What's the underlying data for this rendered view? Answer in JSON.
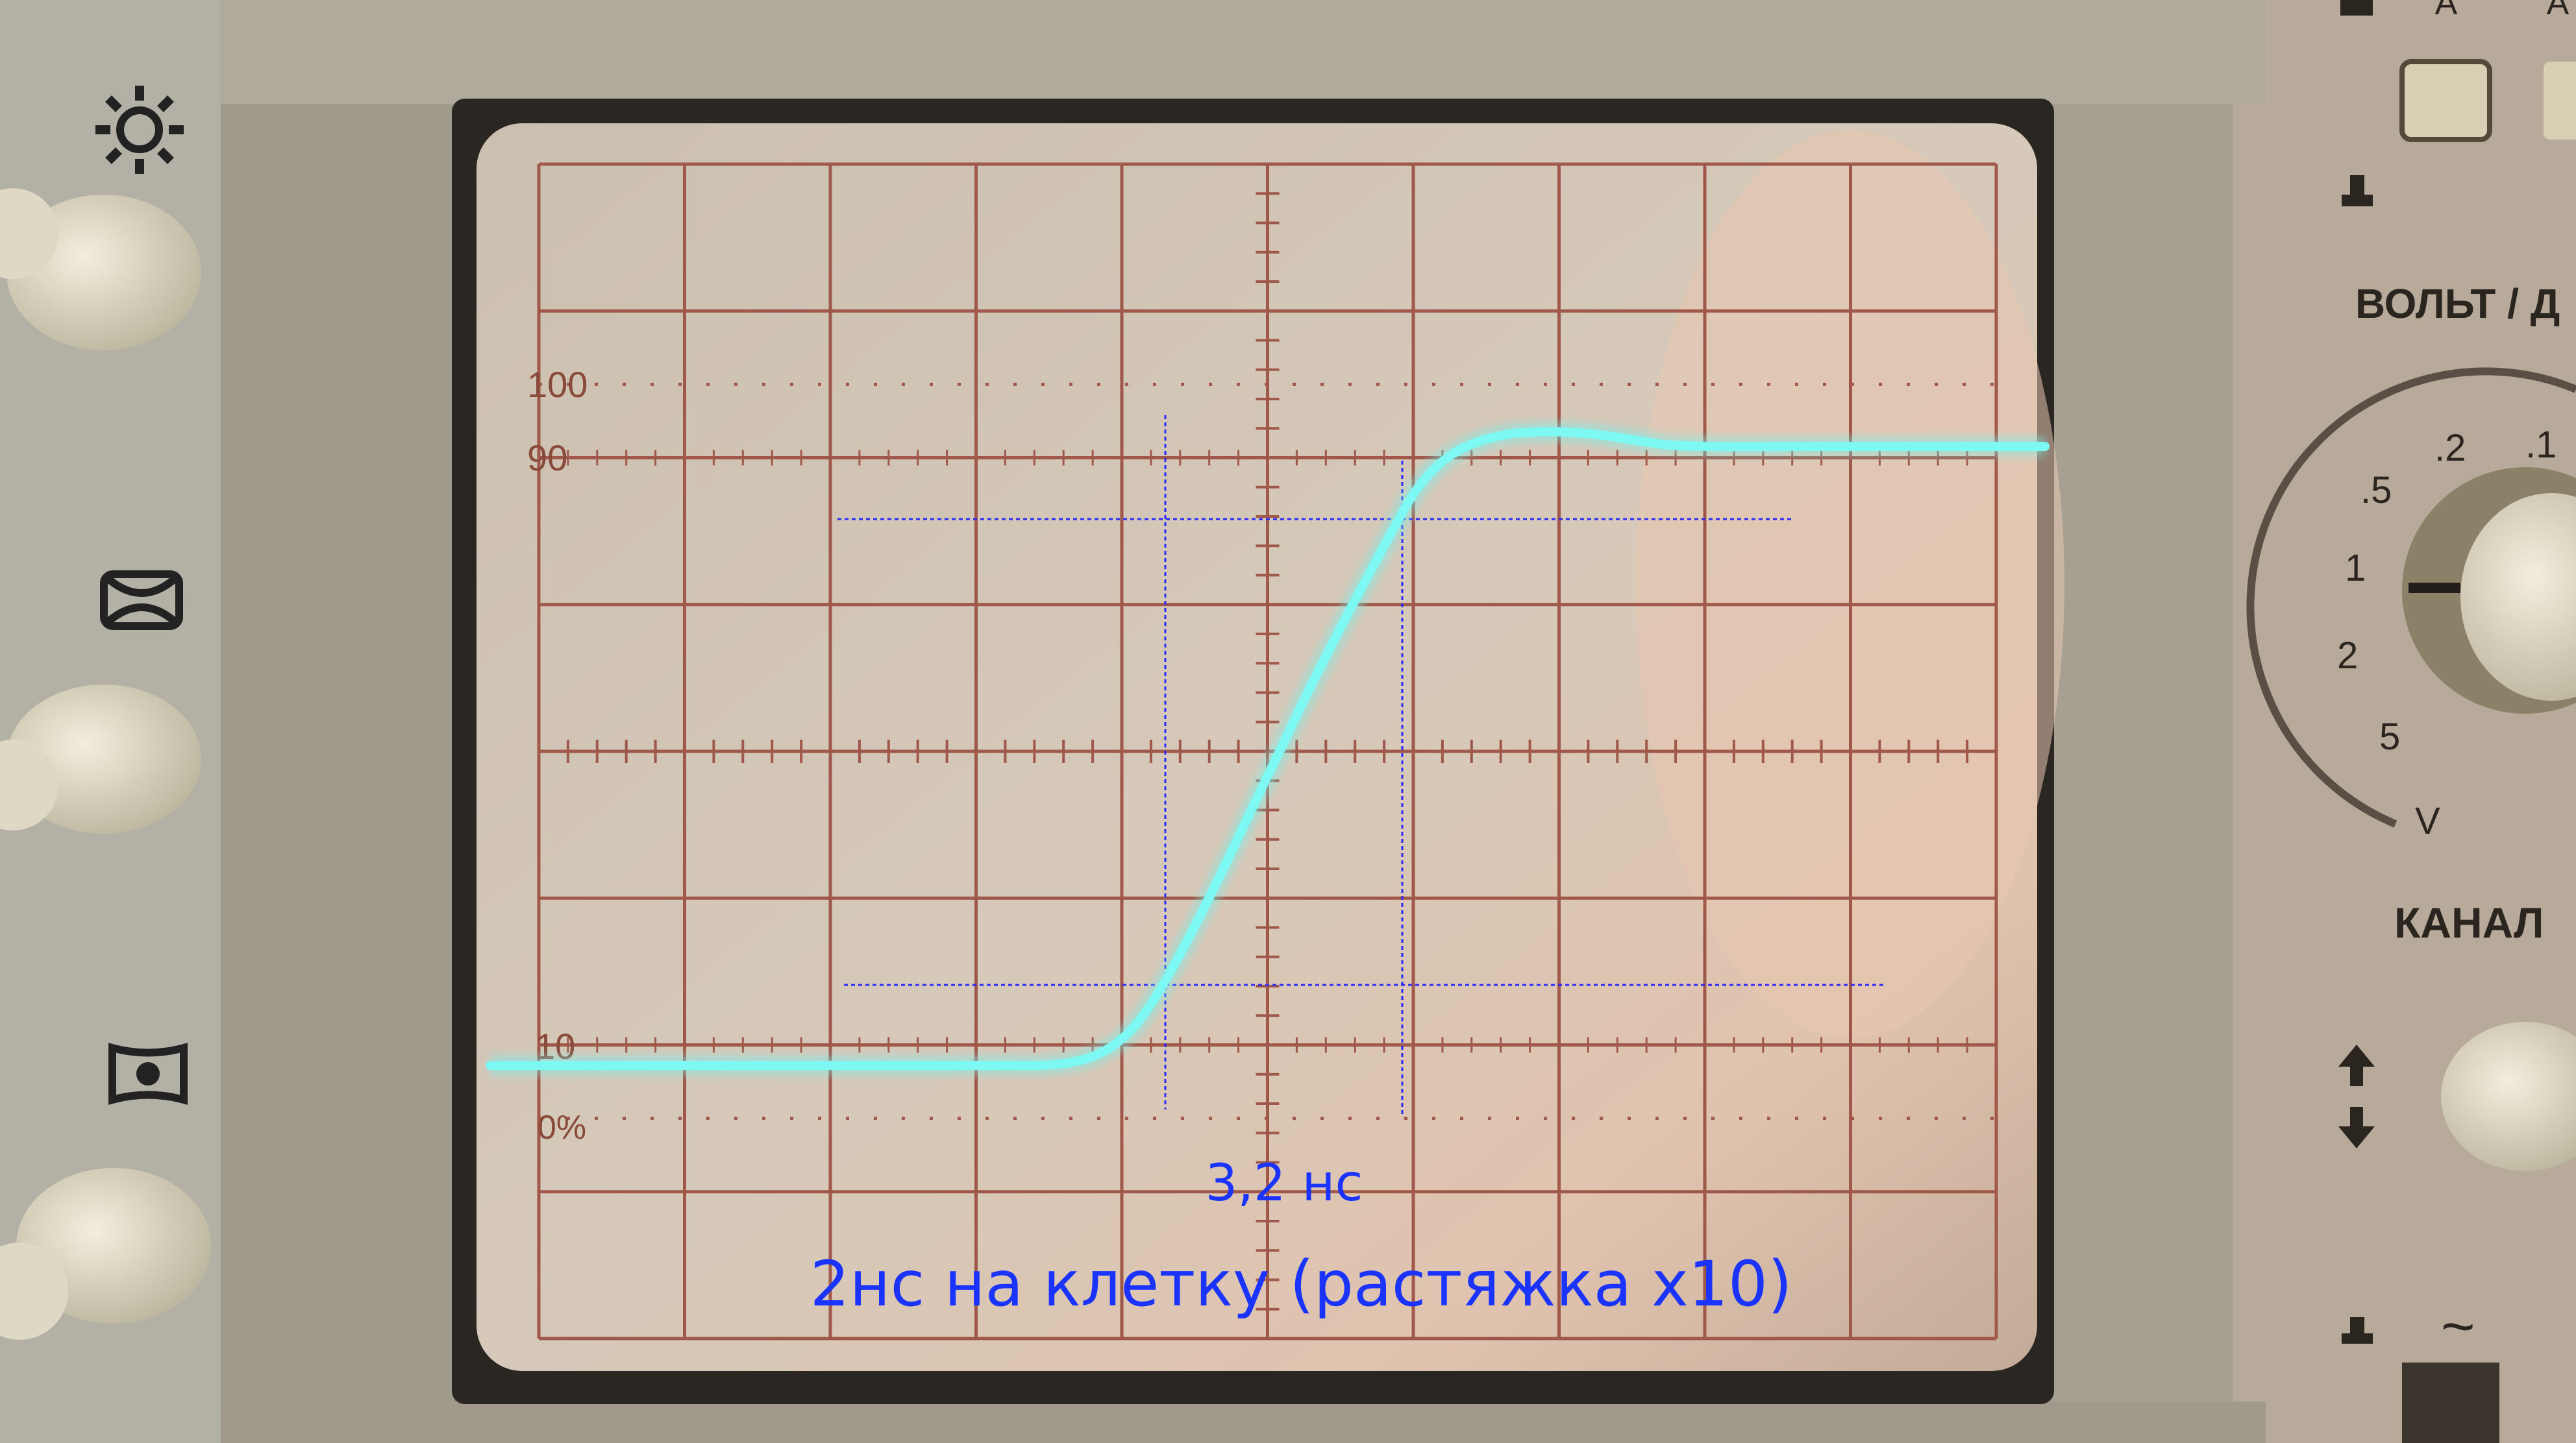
{
  "scope": {
    "graticule_labels": {
      "top": "100",
      "upper": "90",
      "lower": "10",
      "bottom": "0%"
    },
    "trace_color": "#6ff5f0",
    "grid_color": "#a0584a",
    "marker_color": "#2a2aff"
  },
  "annotations": {
    "rise_time": "3,2 нс",
    "timebase": "2нс на клетку (растяжка x10)",
    "color": "#1a33ff"
  },
  "front_panel": {
    "left_icons": [
      "brightness-icon",
      "focus-icon",
      "astigmatism-icon"
    ],
    "switch_labels": [
      "А",
      "А"
    ],
    "volts_label": "ВОЛЬТ / Д",
    "volts_scale": [
      ".1",
      ".2",
      ".5",
      "1",
      "2",
      "5"
    ],
    "volts_unit": "V",
    "channel_label": "КАНАЛ",
    "coupling_symbol": "~"
  }
}
